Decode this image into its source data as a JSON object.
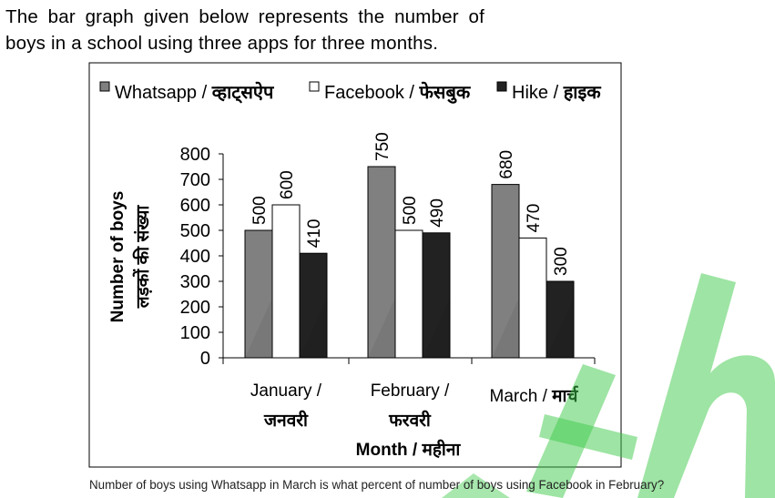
{
  "intro_text": "The bar graph given below represents the number of boys in a school using three apps for three months.",
  "question_text": "Number of boys using Whatsapp in March is what percent of number of boys using Facebook in February?",
  "colors": {
    "whatsapp": "#808080",
    "facebook": "#ffffff",
    "hike": "#222222",
    "watermark": "#3ec94a"
  },
  "chart_data": {
    "type": "bar",
    "categories": [
      {
        "line1": "January /",
        "line2": "जनवरी"
      },
      {
        "line1": "February /",
        "line2": "फरवरी"
      },
      {
        "line1": "March /",
        "line2": "मार्च",
        "inline": true
      }
    ],
    "series": [
      {
        "name": "Whatsapp / व्हाट्सऐप",
        "values": [
          500,
          750,
          680
        ]
      },
      {
        "name": "Facebook / फेसबुक",
        "values": [
          600,
          500,
          470
        ]
      },
      {
        "name": "Hike / हाइक",
        "values": [
          410,
          490,
          300
        ]
      }
    ],
    "ylabel_line1": "Number of boys",
    "ylabel_line2": "लड़कों की संख्या",
    "xlabel": "Month / महीना",
    "ylim": [
      0,
      800
    ],
    "yticks": [
      0,
      100,
      200,
      300,
      400,
      500,
      600,
      700,
      800
    ],
    "legend_position": "top",
    "grid": false
  }
}
